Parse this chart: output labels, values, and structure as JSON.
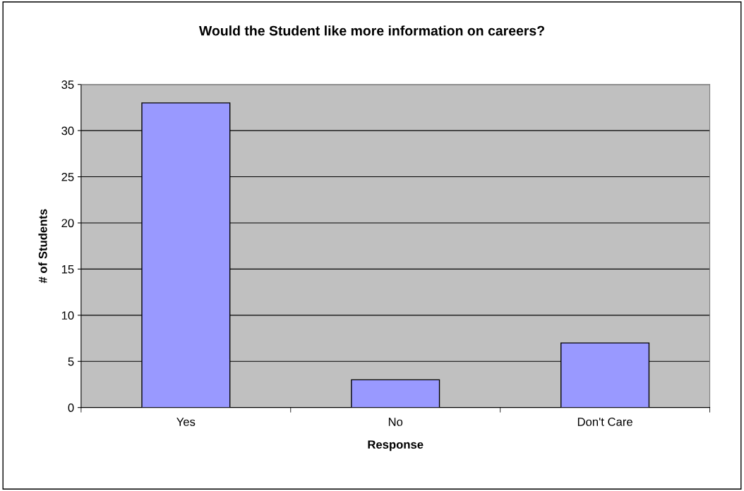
{
  "chart_data": {
    "type": "bar",
    "title": "Would the Student like more information on careers?",
    "xlabel": "Response",
    "ylabel": "# of Students",
    "categories": [
      "Yes",
      "No",
      "Don't Care"
    ],
    "values": [
      33,
      3,
      7
    ],
    "color": "#9999ff",
    "ylim": [
      0,
      35
    ],
    "yticks": [
      0,
      5,
      10,
      15,
      20,
      25,
      30,
      35
    ],
    "grid": "y",
    "legend": false
  }
}
